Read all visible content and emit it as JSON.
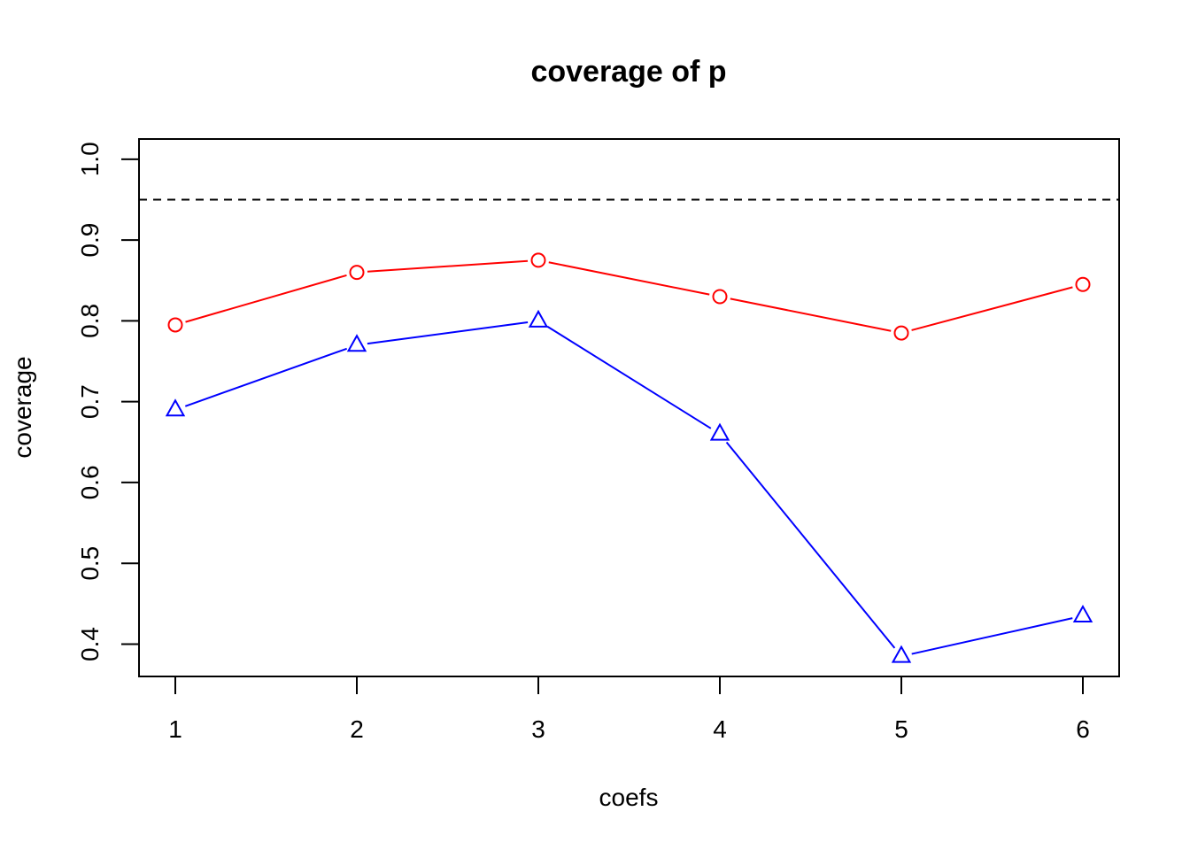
{
  "chart_data": {
    "type": "line",
    "title": "coverage of p",
    "xlabel": "coefs",
    "ylabel": "coverage",
    "x": [
      1,
      2,
      3,
      4,
      5,
      6
    ],
    "x_ticks": [
      "1",
      "2",
      "3",
      "4",
      "5",
      "6"
    ],
    "y_ticks": [
      "0.4",
      "0.5",
      "0.6",
      "0.7",
      "0.8",
      "0.9",
      "1.0"
    ],
    "ylim": [
      0.36,
      1.025
    ],
    "xlim": [
      0.8,
      6.2
    ],
    "grid": false,
    "reference_line": {
      "y": 0.95,
      "style": "dashed",
      "color": "#000000"
    },
    "series": [
      {
        "marker": "circle",
        "color": "#ff0000",
        "values": [
          0.795,
          0.86,
          0.875,
          0.83,
          0.785,
          0.845
        ]
      },
      {
        "marker": "triangle",
        "color": "#0000ff",
        "values": [
          0.69,
          0.77,
          0.8,
          0.66,
          0.385,
          0.435
        ]
      }
    ]
  }
}
